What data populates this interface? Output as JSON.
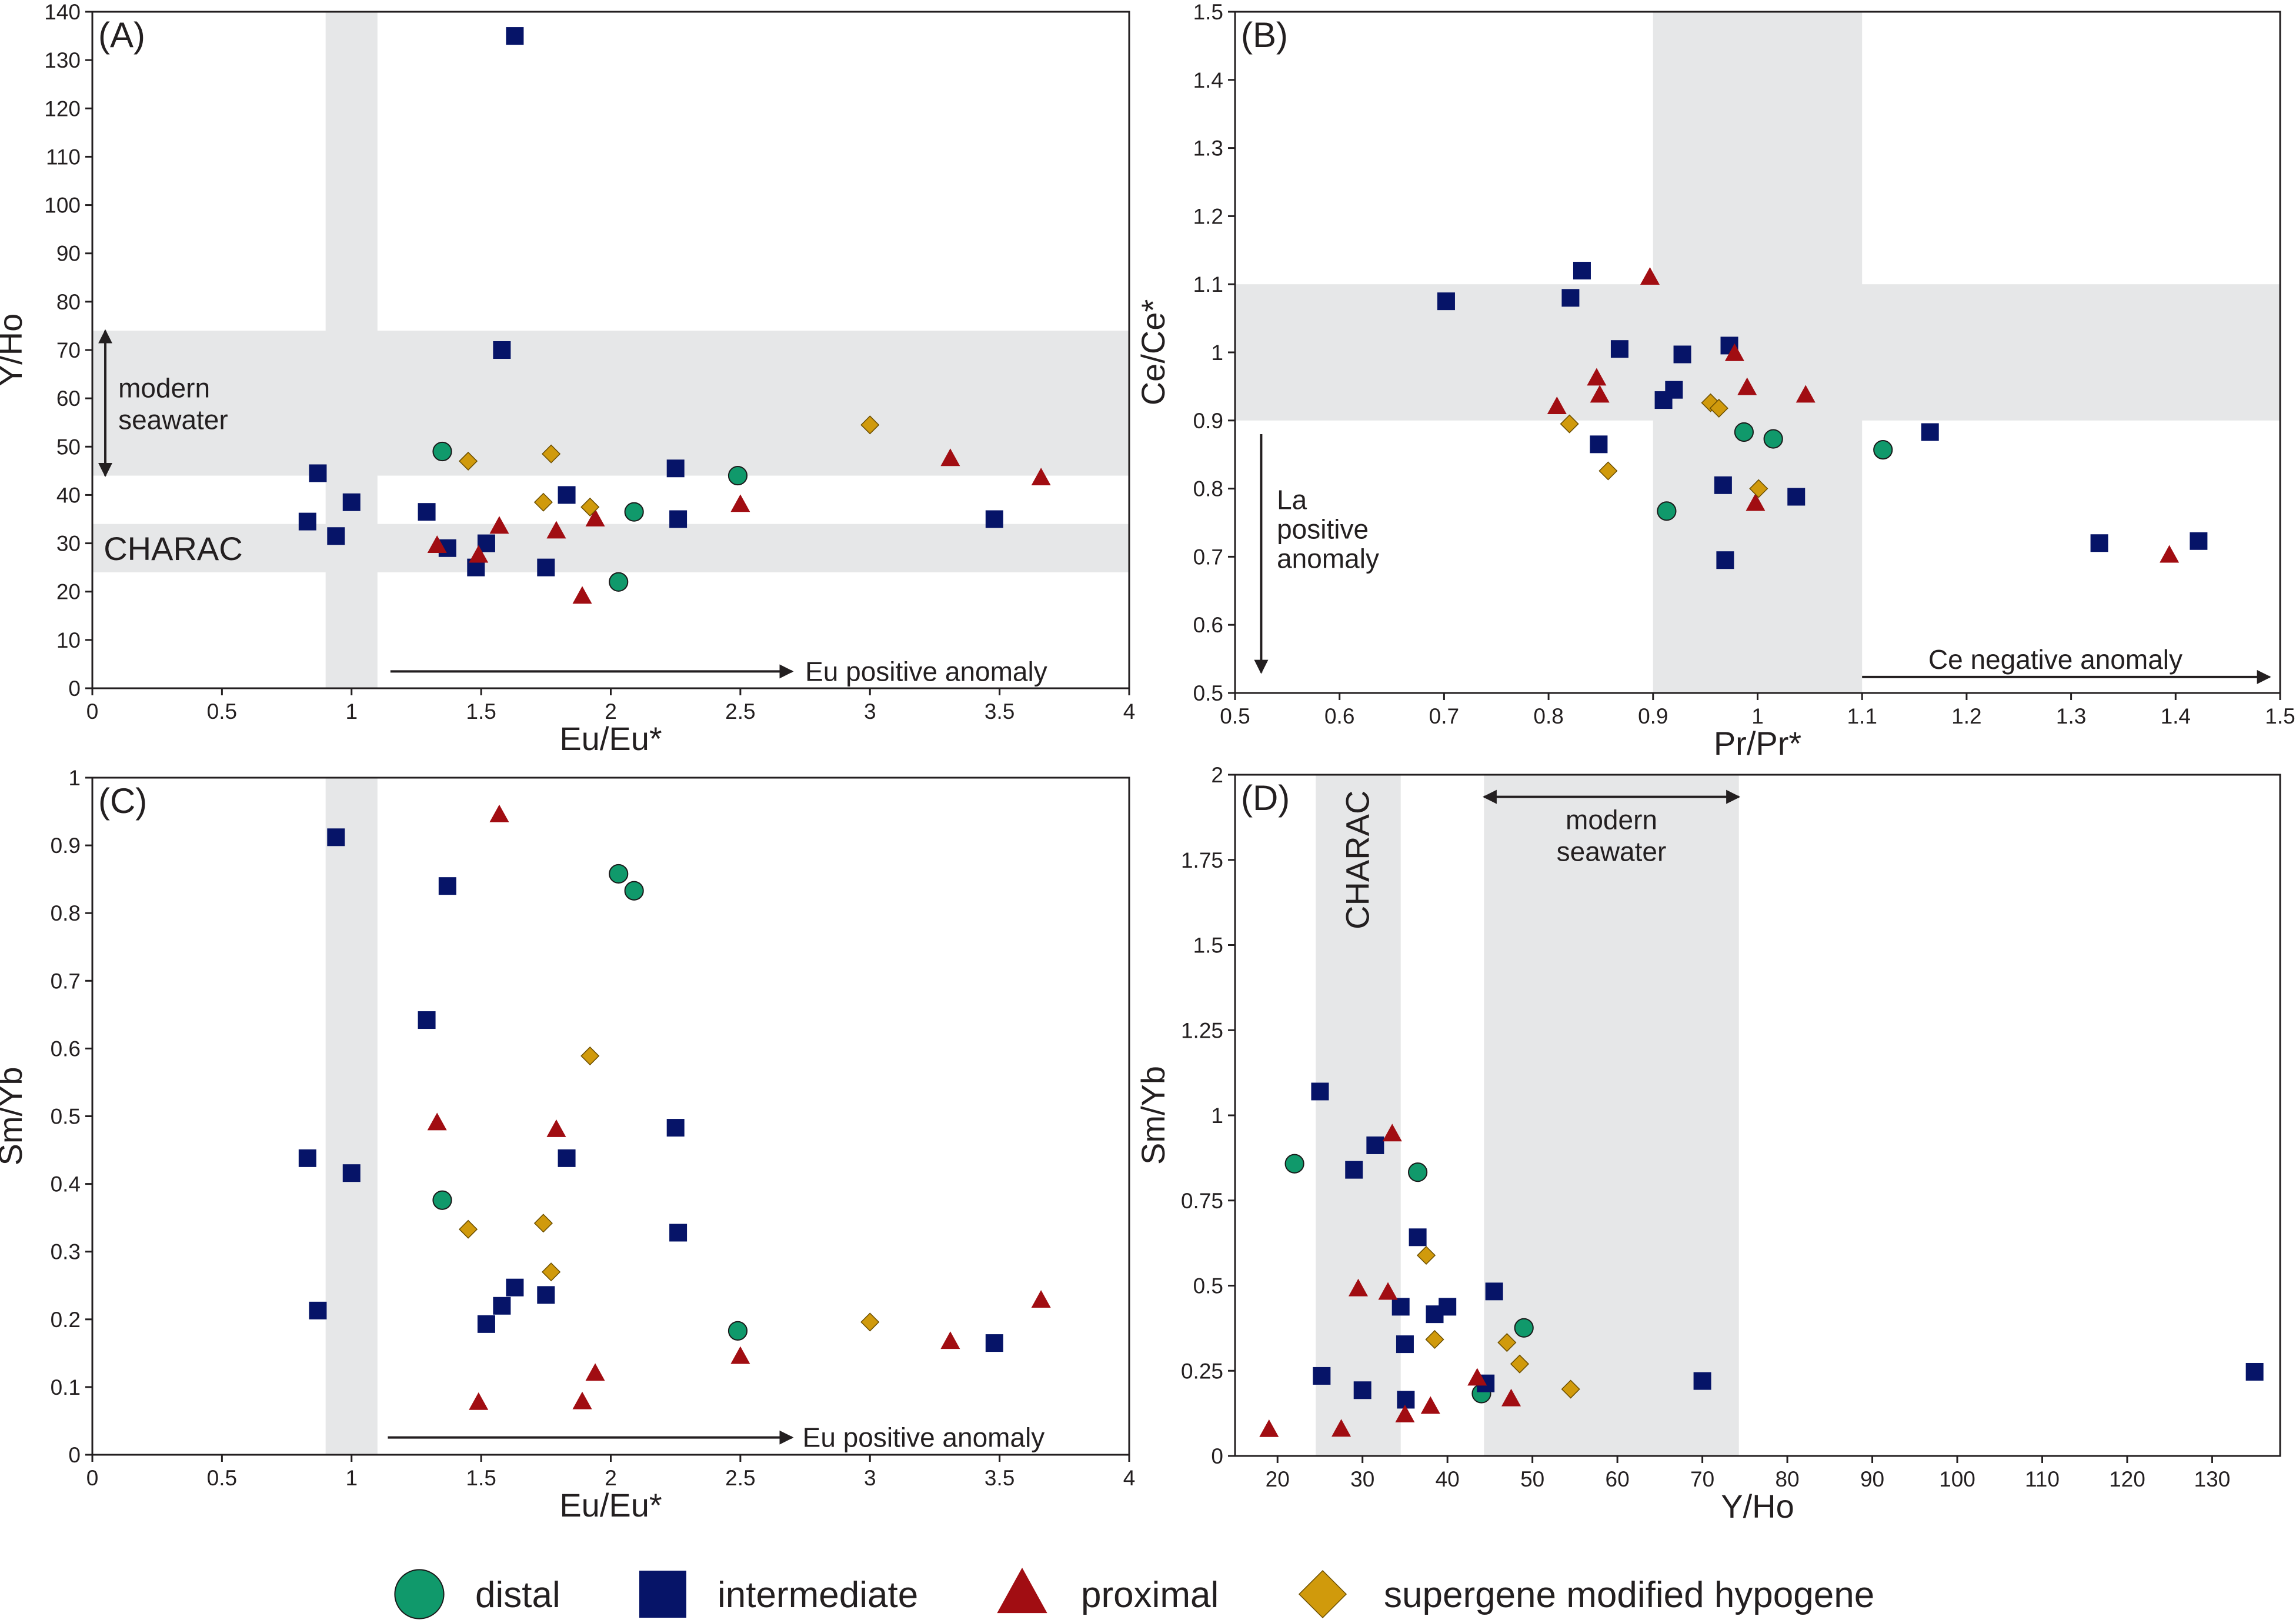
{
  "colors": {
    "distal": "#10996b",
    "intermediate": "#061468",
    "proximal": "#a10d12",
    "supergene modified hypogene": "#d09a0c",
    "band": "#e6e7e8",
    "axis": "#231f20"
  },
  "legend": {
    "items": [
      {
        "key": "distal",
        "label": "distal",
        "marker": "circle"
      },
      {
        "key": "intermediate",
        "label": "intermediate",
        "marker": "square"
      },
      {
        "key": "proximal",
        "label": "proximal",
        "marker": "triangle"
      },
      {
        "key": "supergene modified hypogene",
        "label": "supergene modified hypogene",
        "marker": "diamond"
      }
    ]
  },
  "chart_data": [
    {
      "id": "A",
      "type": "scatter",
      "panel_label": "(A)",
      "xlabel": "Eu/Eu*",
      "ylabel": "Y/Ho",
      "xlim": [
        0,
        4
      ],
      "ylim": [
        0,
        140
      ],
      "xticks": [
        0,
        0.5,
        1,
        1.5,
        2,
        2.5,
        3,
        3.5,
        4
      ],
      "xtick_labels": [
        "0",
        "0.5",
        "1",
        "1.5",
        "2",
        "2.5",
        "3",
        "3.5",
        "4"
      ],
      "yticks": [
        0,
        10,
        20,
        30,
        40,
        50,
        60,
        70,
        80,
        90,
        100,
        110,
        120,
        130,
        140
      ],
      "ytick_labels": [
        "0",
        "10",
        "20",
        "30",
        "40",
        "50",
        "60",
        "70",
        "80",
        "90",
        "100",
        "110",
        "120",
        "130",
        "140"
      ],
      "bands": [
        {
          "axis": "x",
          "from": 0.9,
          "to": 1.1
        },
        {
          "axis": "y",
          "from": 44,
          "to": 74
        },
        {
          "axis": "y",
          "from": 24,
          "to": 34
        }
      ],
      "annotations": [
        {
          "text": "modern\nseawater",
          "kind": "vrange",
          "x": 0.05,
          "y0": 44,
          "y1": 74,
          "text_x": 0.1,
          "text_y": 59
        },
        {
          "text": "CHARAC",
          "kind": "label",
          "x": 0.03,
          "y": 29,
          "size": "large"
        },
        {
          "text": "Eu positive anomaly",
          "kind": "harrow",
          "x0": 1.15,
          "x1": 2.7,
          "y": 3,
          "text_x": 2.75
        }
      ],
      "series": [
        {
          "name": "distal",
          "points": [
            [
              1.35,
              49
            ],
            [
              2.09,
              36.5
            ],
            [
              2.03,
              22
            ],
            [
              2.49,
              44
            ]
          ]
        },
        {
          "name": "intermediate",
          "points": [
            [
              0.83,
              34.5
            ],
            [
              0.87,
              44.5
            ],
            [
              0.94,
              31.5
            ],
            [
              1.0,
              38.5
            ],
            [
              1.29,
              36.5
            ],
            [
              1.37,
              29
            ],
            [
              1.48,
              25
            ],
            [
              1.52,
              30
            ],
            [
              1.58,
              70
            ],
            [
              1.63,
              135
            ],
            [
              1.75,
              25
            ],
            [
              1.83,
              40
            ],
            [
              2.25,
              45.5
            ],
            [
              2.26,
              35
            ],
            [
              3.48,
              35
            ]
          ]
        },
        {
          "name": "proximal",
          "points": [
            [
              1.33,
              29.5
            ],
            [
              1.49,
              27.5
            ],
            [
              1.57,
              33.5
            ],
            [
              1.79,
              32.5
            ],
            [
              1.89,
              19
            ],
            [
              1.94,
              35
            ],
            [
              2.5,
              38
            ],
            [
              3.31,
              47.5
            ],
            [
              3.66,
              43.5
            ]
          ]
        },
        {
          "name": "supergene modified hypogene",
          "points": [
            [
              1.45,
              47
            ],
            [
              1.74,
              38.5
            ],
            [
              1.77,
              48.5
            ],
            [
              1.92,
              37.5
            ],
            [
              3.0,
              54.5
            ]
          ]
        }
      ]
    },
    {
      "id": "B",
      "type": "scatter",
      "panel_label": "(B)",
      "xlabel": "Pr/Pr*",
      "ylabel": "Ce/Ce*",
      "xlim": [
        0.5,
        1.5
      ],
      "ylim": [
        0.5,
        1.5
      ],
      "xticks": [
        0.5,
        0.6,
        0.7,
        0.8,
        0.9,
        1,
        1.1,
        1.2,
        1.3,
        1.4,
        1.5
      ],
      "xtick_labels": [
        "0.5",
        "0.6",
        "0.7",
        "0.8",
        "0.9",
        "1",
        "1.1",
        "1.2",
        "1.3",
        "1.4",
        "1.5"
      ],
      "yticks": [
        0.5,
        0.6,
        0.7,
        0.8,
        0.9,
        1,
        1.1,
        1.2,
        1.3,
        1.4,
        1.5
      ],
      "ytick_labels": [
        "0.5",
        "0.6",
        "0.7",
        "0.8",
        "0.9",
        "1",
        "1.1",
        "1.2",
        "1.3",
        "1.4",
        "1.5"
      ],
      "bands": [
        {
          "axis": "x",
          "from": 0.9,
          "to": 1.1
        },
        {
          "axis": "y",
          "from": 0.9,
          "to": 1.1
        }
      ],
      "annotations": [
        {
          "text": "La\npositive\nanomaly",
          "kind": "varrow",
          "x": 0.525,
          "y0": 0.88,
          "y1": 0.53,
          "text_x": 0.54,
          "text_y": 0.77
        },
        {
          "text": "Ce negative anomaly",
          "kind": "harrow",
          "x0": 1.1,
          "x1": 1.49,
          "y": 0.52,
          "text_x": 1.285
        }
      ],
      "series": [
        {
          "name": "distal",
          "points": [
            [
              0.913,
              0.767
            ],
            [
              0.987,
              0.883
            ],
            [
              1.015,
              0.873
            ],
            [
              1.12,
              0.857
            ]
          ]
        },
        {
          "name": "intermediate",
          "points": [
            [
              0.702,
              1.075
            ],
            [
              0.821,
              1.08
            ],
            [
              0.832,
              1.12
            ],
            [
              0.848,
              0.865
            ],
            [
              0.868,
              1.005
            ],
            [
              0.91,
              0.93
            ],
            [
              0.92,
              0.945
            ],
            [
              0.928,
              0.997
            ],
            [
              0.967,
              0.805
            ],
            [
              0.969,
              0.695
            ],
            [
              0.973,
              1.01
            ],
            [
              1.037,
              0.788
            ],
            [
              1.165,
              0.883
            ],
            [
              1.327,
              0.72
            ],
            [
              1.422,
              0.723
            ]
          ]
        },
        {
          "name": "proximal",
          "points": [
            [
              0.808,
              0.92
            ],
            [
              0.846,
              0.962
            ],
            [
              0.849,
              0.937
            ],
            [
              0.897,
              1.11
            ],
            [
              0.978,
              0.998
            ],
            [
              0.99,
              0.948
            ],
            [
              0.998,
              0.778
            ],
            [
              1.046,
              0.937
            ],
            [
              1.394,
              0.702
            ]
          ]
        },
        {
          "name": "supergene modified hypogene",
          "points": [
            [
              0.82,
              0.895
            ],
            [
              0.857,
              0.826
            ],
            [
              0.955,
              0.926
            ],
            [
              0.963,
              0.918
            ],
            [
              1.001,
              0.8
            ]
          ]
        }
      ]
    },
    {
      "id": "C",
      "type": "scatter",
      "panel_label": "(C)",
      "xlabel": "Eu/Eu*",
      "ylabel": "Sm/Yb",
      "xlim": [
        0,
        4
      ],
      "ylim": [
        0,
        1
      ],
      "xticks": [
        0,
        0.5,
        1,
        1.5,
        2,
        2.5,
        3,
        3.5,
        4
      ],
      "xtick_labels": [
        "0",
        "0.5",
        "1",
        "1.5",
        "2",
        "2.5",
        "3",
        "3.5",
        "4"
      ],
      "yticks": [
        0,
        0.1,
        0.2,
        0.3,
        0.4,
        0.5,
        0.6,
        0.7,
        0.8,
        0.9,
        1
      ],
      "ytick_labels": [
        "0",
        "0.1",
        "0.2",
        "0.3",
        "0.4",
        "0.5",
        "0.6",
        "0.7",
        "0.8",
        "0.9",
        "1"
      ],
      "bands": [
        {
          "axis": "x",
          "from": 0.9,
          "to": 1.1
        }
      ],
      "annotations": [
        {
          "text": "Eu positive anomaly",
          "kind": "harrow",
          "x0": 1.14,
          "x1": 2.7,
          "y": 0.022,
          "text_x": 2.74
        }
      ],
      "series": [
        {
          "name": "distal",
          "points": [
            [
              1.35,
              0.376
            ],
            [
              2.03,
              0.858
            ],
            [
              2.09,
              0.833
            ],
            [
              2.49,
              0.183
            ]
          ]
        },
        {
          "name": "intermediate",
          "points": [
            [
              0.83,
              0.438
            ],
            [
              0.87,
              0.213
            ],
            [
              0.94,
              0.912
            ],
            [
              1.0,
              0.416
            ],
            [
              1.29,
              0.642
            ],
            [
              1.37,
              0.84
            ],
            [
              1.52,
              0.193
            ],
            [
              1.58,
              0.22
            ],
            [
              1.63,
              0.247
            ],
            [
              1.75,
              0.236
            ],
            [
              1.83,
              0.438
            ],
            [
              2.25,
              0.483
            ],
            [
              2.26,
              0.328
            ],
            [
              3.48,
              0.165
            ]
          ]
        },
        {
          "name": "proximal",
          "points": [
            [
              1.33,
              0.49
            ],
            [
              1.49,
              0.077
            ],
            [
              1.57,
              0.945
            ],
            [
              1.79,
              0.48
            ],
            [
              1.89,
              0.078
            ],
            [
              1.94,
              0.12
            ],
            [
              2.5,
              0.145
            ],
            [
              3.31,
              0.167
            ],
            [
              3.66,
              0.228
            ]
          ]
        },
        {
          "name": "supergene modified hypogene",
          "points": [
            [
              1.45,
              0.333
            ],
            [
              1.74,
              0.342
            ],
            [
              1.77,
              0.27
            ],
            [
              1.92,
              0.589
            ],
            [
              3.0,
              0.196
            ]
          ]
        }
      ]
    },
    {
      "id": "D",
      "type": "scatter",
      "panel_label": "(D)",
      "xlabel": "Y/Ho",
      "ylabel": "Sm/Yb",
      "xlim": [
        15,
        138
      ],
      "ylim": [
        0,
        2
      ],
      "xticks": [
        20,
        30,
        40,
        50,
        60,
        70,
        80,
        90,
        100,
        110,
        120,
        130
      ],
      "xtick_labels": [
        "20",
        "30",
        "40",
        "50",
        "60",
        "70",
        "80",
        "90",
        "100",
        "110",
        "120",
        "130"
      ],
      "yticks": [
        0,
        0.25,
        0.5,
        0.75,
        1,
        1.25,
        1.5,
        1.75,
        2
      ],
      "ytick_labels": [
        "0",
        "0.25",
        "0.5",
        "0.75",
        "1",
        "1.25",
        "1.5",
        "1.75",
        "2"
      ],
      "bands": [
        {
          "axis": "x",
          "from": 24.5,
          "to": 34.5
        },
        {
          "axis": "x",
          "from": 44.3,
          "to": 74.3
        }
      ],
      "annotations": [
        {
          "text": "CHARAC",
          "kind": "vlabel",
          "x": 29.5,
          "y": 1.75
        },
        {
          "text": "modern\nseawater",
          "kind": "hrange",
          "x0": 44.3,
          "x1": 74.3,
          "y": 1.935,
          "text_x": 59.3,
          "text_y": 1.84
        }
      ],
      "series": [
        {
          "name": "distal",
          "points": [
            [
              22,
              0.858
            ],
            [
              36.5,
              0.833
            ],
            [
              44,
              0.183
            ],
            [
              49,
              0.376
            ]
          ]
        },
        {
          "name": "intermediate",
          "points": [
            [
              25,
              1.07
            ],
            [
              25.2,
              0.235
            ],
            [
              29,
              0.84
            ],
            [
              30,
              0.193
            ],
            [
              31.5,
              0.912
            ],
            [
              34.5,
              0.438
            ],
            [
              35,
              0.328
            ],
            [
              35.1,
              0.165
            ],
            [
              36.5,
              0.642
            ],
            [
              38.5,
              0.416
            ],
            [
              40,
              0.438
            ],
            [
              44.5,
              0.213
            ],
            [
              45.5,
              0.483
            ],
            [
              70,
              0.22
            ],
            [
              135,
              0.247
            ]
          ]
        },
        {
          "name": "proximal",
          "points": [
            [
              19,
              0.077
            ],
            [
              27.5,
              0.078
            ],
            [
              29.5,
              0.49
            ],
            [
              33,
              0.48
            ],
            [
              33.5,
              0.945
            ],
            [
              35,
              0.12
            ],
            [
              38,
              0.145
            ],
            [
              43.5,
              0.228
            ],
            [
              47.5,
              0.167
            ]
          ]
        },
        {
          "name": "supergene modified hypogene",
          "points": [
            [
              37.5,
              0.589
            ],
            [
              38.5,
              0.342
            ],
            [
              47,
              0.333
            ],
            [
              48.5,
              0.27
            ],
            [
              54.5,
              0.196
            ]
          ]
        }
      ]
    }
  ]
}
